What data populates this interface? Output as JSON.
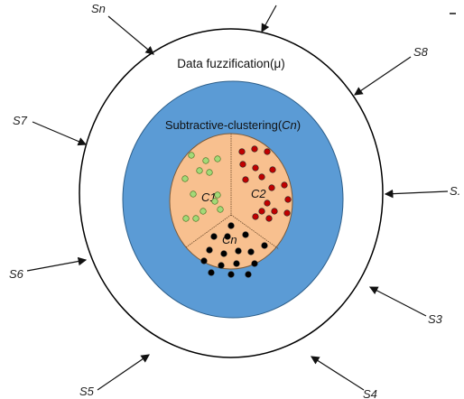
{
  "outer_ring_label": "Data fuzzification(μ)",
  "inner_label": "Subtractive-clustering(Cn)",
  "inner_label_prefix": "Subtractive-clustering(",
  "inner_label_italic": "Cn",
  "inner_label_suffix": ")",
  "clusters": [
    {
      "id": "c1",
      "label": "C1",
      "point_color": "#a3d977"
    },
    {
      "id": "c2",
      "label": "C2",
      "point_color": "#c00000"
    },
    {
      "id": "cn",
      "label": "Cn",
      "point_color": "#000000"
    }
  ],
  "sources": [
    {
      "id": "sn",
      "label": "Sn"
    },
    {
      "id": "s8",
      "label": "S8"
    },
    {
      "id": "s7",
      "label": "S7"
    },
    {
      "id": "s1",
      "label": "S."
    },
    {
      "id": "s6",
      "label": "S6"
    },
    {
      "id": "s3",
      "label": "S3"
    },
    {
      "id": "s5",
      "label": "S5"
    },
    {
      "id": "s4",
      "label": "S4"
    }
  ],
  "colors": {
    "outer_ring_fill": "#ffffff",
    "blue_layer": "#5b9bd5",
    "core": "#f8c08f"
  }
}
